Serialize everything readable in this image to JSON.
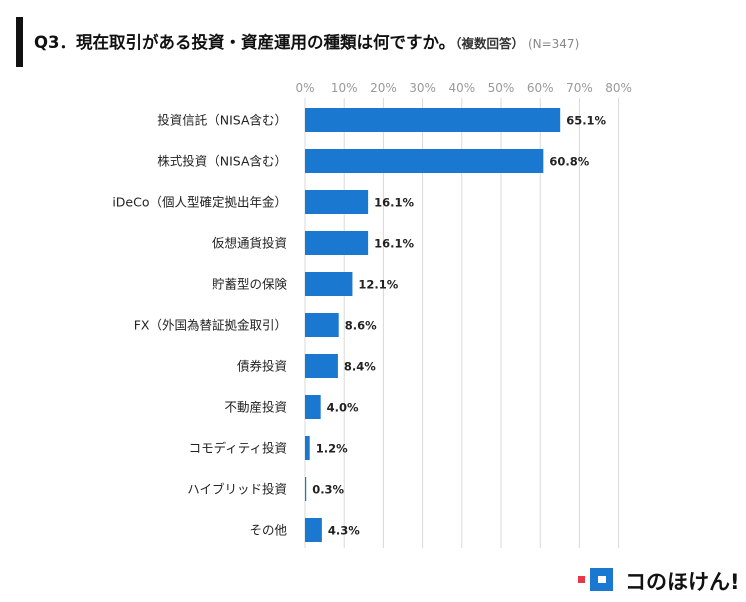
{
  "title": {
    "main": "Q3．現在取引がある投資・資産運用の種類は何ですか。",
    "note": "（複数回答）",
    "sample": "(N=347)"
  },
  "brand": {
    "name": "コのほけん!"
  },
  "colors": {
    "bar": "#1b78d0",
    "grid": "#d9d9d9",
    "tick": "#9a9a9a",
    "accent": "#e8364b"
  },
  "chart_data": {
    "type": "bar",
    "orientation": "horizontal",
    "categories": [
      "投資信託（NISA含む）",
      "株式投資（NISA含む）",
      "iDeCo（個人型確定拠出年金）",
      "仮想通貨投資",
      "貯蓄型の保険",
      "FX（外国為替証拠金取引）",
      "債券投資",
      "不動産投資",
      "コモディティ投資",
      "ハイブリッド投資",
      "その他"
    ],
    "values": [
      65.1,
      60.8,
      16.1,
      16.1,
      12.1,
      8.6,
      8.4,
      4.0,
      1.2,
      0.3,
      4.3
    ],
    "value_labels": [
      "65.1%",
      "60.8%",
      "16.1%",
      "16.1%",
      "12.1%",
      "8.6%",
      "8.4%",
      "4.0%",
      "1.2%",
      "0.3%",
      "4.3%"
    ],
    "xlim": [
      0,
      80
    ],
    "ticks": [
      0,
      10,
      20,
      30,
      40,
      50,
      60,
      70,
      80
    ],
    "tick_labels": [
      "0%",
      "10%",
      "20%",
      "30%",
      "40%",
      "50%",
      "60%",
      "70%",
      "80%"
    ],
    "grid": true,
    "axis_position": "top"
  }
}
